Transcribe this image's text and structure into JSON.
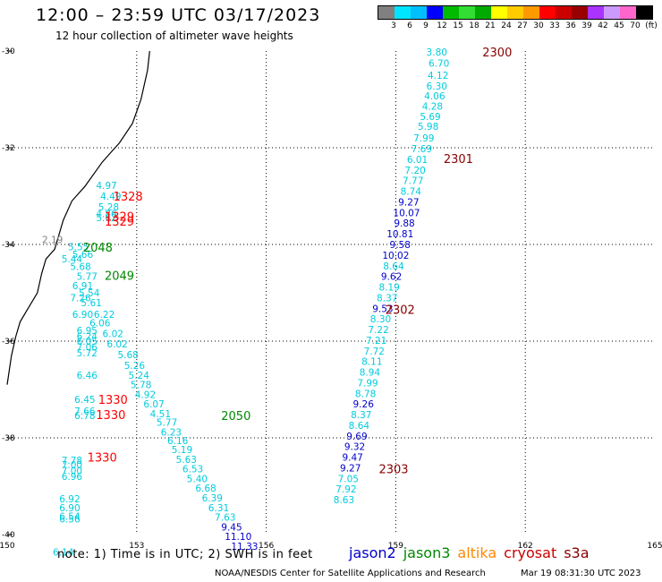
{
  "title": "12:00 – 23:59 UTC 03/17/2023",
  "subtitle": "12 hour collection of altimeter wave heights",
  "legend": {
    "labels": [
      "3",
      "6",
      "9",
      "12",
      "15",
      "18",
      "21",
      "24",
      "27",
      "30",
      "33",
      "36",
      "39",
      "42",
      "45",
      "70",
      "(ft)"
    ],
    "colors": [
      "#808080",
      "#00e5ff",
      "#00bfff",
      "#0000ff",
      "#00bb00",
      "#33dd33",
      "#00aa00",
      "#ffff00",
      "#ffcc00",
      "#ff9900",
      "#ff0000",
      "#cc0000",
      "#990000",
      "#aa33ff",
      "#cc99ff",
      "#ff66cc",
      "#000000"
    ]
  },
  "footnote": "note:  1) Time is in UTC;  2) SWH is in feet",
  "satellites": [
    {
      "name": "jason2",
      "color": "#0000cc"
    },
    {
      "name": "jason3",
      "color": "#008800"
    },
    {
      "name": "altika",
      "color": "#ff8800"
    },
    {
      "name": "cryosat",
      "color": "#cc0000"
    },
    {
      "name": "s3a",
      "color": "#880000"
    }
  ],
  "credit": "NOAA/NESDIS Center for Satellite Applications and Research",
  "credit_date": "Mar 19 08:31:30 UTC 2023",
  "map": {
    "lon_range": [
      150,
      165
    ],
    "lat_range": [
      -40,
      -30
    ],
    "lon_ticks": [
      150,
      153,
      156,
      159,
      162,
      165
    ],
    "lat_ticks": [
      -30,
      -32,
      -34,
      -36,
      -38,
      -40
    ],
    "lon_labels": [
      "150",
      "153",
      "156",
      "159",
      "162",
      "165"
    ],
    "lat_labels": [
      "-30",
      "-32",
      "-34",
      "-36",
      "-38",
      "-40"
    ],
    "coastline": [
      [
        153.3,
        -30
      ],
      [
        153.25,
        -30.4
      ],
      [
        153.1,
        -31
      ],
      [
        152.9,
        -31.5
      ],
      [
        152.6,
        -31.9
      ],
      [
        152.4,
        -32.1
      ],
      [
        152.2,
        -32.3
      ],
      [
        151.8,
        -32.8
      ],
      [
        151.5,
        -33.1
      ],
      [
        151.3,
        -33.5
      ],
      [
        151.2,
        -33.8
      ],
      [
        151.1,
        -34.1
      ],
      [
        150.9,
        -34.3
      ],
      [
        150.8,
        -34.6
      ],
      [
        150.7,
        -35.0
      ],
      [
        150.5,
        -35.3
      ],
      [
        150.3,
        -35.6
      ],
      [
        150.2,
        -35.9
      ],
      [
        150.1,
        -36.3
      ],
      [
        150.05,
        -36.6
      ],
      [
        150.0,
        -36.9
      ]
    ],
    "measurements": [
      {
        "lon": 159.95,
        "lat": -30.02,
        "v": "3.80",
        "c": "#00ccdd"
      },
      {
        "lon": 160.0,
        "lat": -30.25,
        "v": "6.70",
        "c": "#00ccdd"
      },
      {
        "lon": 159.98,
        "lat": -30.5,
        "v": "4.12",
        "c": "#00ccdd"
      },
      {
        "lon": 159.95,
        "lat": -30.72,
        "v": "6.30",
        "c": "#00ccdd"
      },
      {
        "lon": 159.9,
        "lat": -30.93,
        "v": "4.06",
        "c": "#00ccdd"
      },
      {
        "lon": 159.85,
        "lat": -31.14,
        "v": "4.28",
        "c": "#00ccdd"
      },
      {
        "lon": 159.8,
        "lat": -31.35,
        "v": "5.69",
        "c": "#00ccdd"
      },
      {
        "lon": 159.75,
        "lat": -31.56,
        "v": "5.98",
        "c": "#00ccdd"
      },
      {
        "lon": 159.65,
        "lat": -31.8,
        "v": "7.99",
        "c": "#00ccdd"
      },
      {
        "lon": 159.6,
        "lat": -32.02,
        "v": "7.69",
        "c": "#00ccdd"
      },
      {
        "lon": 159.5,
        "lat": -32.24,
        "v": "6.01",
        "c": "#00ccdd"
      },
      {
        "lon": 159.45,
        "lat": -32.46,
        "v": "7.20",
        "c": "#00ccdd"
      },
      {
        "lon": 159.4,
        "lat": -32.68,
        "v": "7.77",
        "c": "#00ccdd"
      },
      {
        "lon": 159.35,
        "lat": -32.9,
        "v": "8.74",
        "c": "#00ccdd"
      },
      {
        "lon": 159.3,
        "lat": -33.12,
        "v": "9.27",
        "c": "#0000cc"
      },
      {
        "lon": 159.25,
        "lat": -33.34,
        "v": "10.07",
        "c": "#0000cc"
      },
      {
        "lon": 159.2,
        "lat": -33.56,
        "v": "9.88",
        "c": "#0000cc"
      },
      {
        "lon": 159.1,
        "lat": -33.78,
        "v": "10.81",
        "c": "#0000cc"
      },
      {
        "lon": 159.1,
        "lat": -34.0,
        "v": "9.58",
        "c": "#0000cc"
      },
      {
        "lon": 159.0,
        "lat": -34.22,
        "v": "10.02",
        "c": "#0000cc"
      },
      {
        "lon": 158.95,
        "lat": -34.44,
        "v": "8.64",
        "c": "#00ccdd"
      },
      {
        "lon": 158.9,
        "lat": -34.66,
        "v": "9.62",
        "c": "#0000cc"
      },
      {
        "lon": 158.85,
        "lat": -34.88,
        "v": "8.19",
        "c": "#00ccdd"
      },
      {
        "lon": 158.8,
        "lat": -35.1,
        "v": "8.37",
        "c": "#00ccdd"
      },
      {
        "lon": 158.7,
        "lat": -35.32,
        "v": "9.53",
        "c": "#0000cc"
      },
      {
        "lon": 158.65,
        "lat": -35.54,
        "v": "8.30",
        "c": "#00ccdd"
      },
      {
        "lon": 158.6,
        "lat": -35.76,
        "v": "7.22",
        "c": "#00ccdd"
      },
      {
        "lon": 158.55,
        "lat": -35.98,
        "v": "7.21",
        "c": "#00ccdd"
      },
      {
        "lon": 158.5,
        "lat": -36.2,
        "v": "7.72",
        "c": "#00ccdd"
      },
      {
        "lon": 158.45,
        "lat": -36.42,
        "v": "8.11",
        "c": "#00ccdd"
      },
      {
        "lon": 158.4,
        "lat": -36.64,
        "v": "8.94",
        "c": "#00ccdd"
      },
      {
        "lon": 158.35,
        "lat": -36.86,
        "v": "7.99",
        "c": "#00ccdd"
      },
      {
        "lon": 158.3,
        "lat": -37.08,
        "v": "8.78",
        "c": "#00ccdd"
      },
      {
        "lon": 158.25,
        "lat": -37.3,
        "v": "9.26",
        "c": "#0000cc"
      },
      {
        "lon": 158.2,
        "lat": -37.52,
        "v": "8.37",
        "c": "#00ccdd"
      },
      {
        "lon": 158.15,
        "lat": -37.74,
        "v": "8.64",
        "c": "#00ccdd"
      },
      {
        "lon": 158.1,
        "lat": -37.96,
        "v": "9.69",
        "c": "#0000cc"
      },
      {
        "lon": 158.05,
        "lat": -38.18,
        "v": "9.32",
        "c": "#0000cc"
      },
      {
        "lon": 158.0,
        "lat": -38.4,
        "v": "9.47",
        "c": "#0000cc"
      },
      {
        "lon": 157.95,
        "lat": -38.62,
        "v": "9.27",
        "c": "#0000cc"
      },
      {
        "lon": 157.9,
        "lat": -38.84,
        "v": "7.05",
        "c": "#00ccdd"
      },
      {
        "lon": 157.85,
        "lat": -39.06,
        "v": "7.92",
        "c": "#00ccdd"
      },
      {
        "lon": 157.8,
        "lat": -39.28,
        "v": "8.63",
        "c": "#00ccdd"
      },
      {
        "lon": 152.3,
        "lat": -32.78,
        "v": "4.97",
        "c": "#00ccdd"
      },
      {
        "lon": 152.4,
        "lat": -33.0,
        "v": "4.49",
        "c": "#00ccdd"
      },
      {
        "lon": 152.35,
        "lat": -33.22,
        "v": "5.28",
        "c": "#00ccdd"
      },
      {
        "lon": 152.3,
        "lat": -33.36,
        "v": "4.86",
        "c": "#00ccdd"
      },
      {
        "lon": 152.3,
        "lat": -33.44,
        "v": "5.62",
        "c": "#00ccdd"
      },
      {
        "lon": 151.05,
        "lat": -33.9,
        "v": "2.19",
        "c": "#808080"
      },
      {
        "lon": 151.65,
        "lat": -34.05,
        "v": "5.55",
        "c": "#00ccdd"
      },
      {
        "lon": 151.75,
        "lat": -34.2,
        "v": "5.66",
        "c": "#00ccdd"
      },
      {
        "lon": 151.5,
        "lat": -34.3,
        "v": "5.44",
        "c": "#00ccdd"
      },
      {
        "lon": 151.7,
        "lat": -34.45,
        "v": "5.68",
        "c": "#00ccdd"
      },
      {
        "lon": 151.85,
        "lat": -34.66,
        "v": "5.77",
        "c": "#00ccdd"
      },
      {
        "lon": 151.75,
        "lat": -34.85,
        "v": "6.91",
        "c": "#00ccdd"
      },
      {
        "lon": 151.9,
        "lat": -35.0,
        "v": "5.54",
        "c": "#00ccdd"
      },
      {
        "lon": 151.7,
        "lat": -35.1,
        "v": "7.26",
        "c": "#00ccdd"
      },
      {
        "lon": 151.95,
        "lat": -35.2,
        "v": "5.61",
        "c": "#00ccdd"
      },
      {
        "lon": 151.75,
        "lat": -35.44,
        "v": "6.90",
        "c": "#00ccdd"
      },
      {
        "lon": 152.25,
        "lat": -35.44,
        "v": "6.22",
        "c": "#00ccdd"
      },
      {
        "lon": 152.15,
        "lat": -35.62,
        "v": "6.06",
        "c": "#00ccdd"
      },
      {
        "lon": 151.85,
        "lat": -35.78,
        "v": "6.95",
        "c": "#00ccdd"
      },
      {
        "lon": 152.45,
        "lat": -35.84,
        "v": "6.02",
        "c": "#00ccdd"
      },
      {
        "lon": 151.85,
        "lat": -35.9,
        "v": "6.24",
        "c": "#00ccdd"
      },
      {
        "lon": 151.85,
        "lat": -36.0,
        "v": "6.05",
        "c": "#00ccdd"
      },
      {
        "lon": 152.55,
        "lat": -36.06,
        "v": "6.02",
        "c": "#00ccdd"
      },
      {
        "lon": 151.85,
        "lat": -36.12,
        "v": "7.06",
        "c": "#00ccdd"
      },
      {
        "lon": 151.85,
        "lat": -36.24,
        "v": "5.72",
        "c": "#00ccdd"
      },
      {
        "lon": 152.8,
        "lat": -36.28,
        "v": "5.68",
        "c": "#00ccdd"
      },
      {
        "lon": 152.95,
        "lat": -36.5,
        "v": "5.26",
        "c": "#00ccdd"
      },
      {
        "lon": 153.05,
        "lat": -36.7,
        "v": "5.24",
        "c": "#00ccdd"
      },
      {
        "lon": 151.85,
        "lat": -36.7,
        "v": "6.46",
        "c": "#00ccdd"
      },
      {
        "lon": 153.1,
        "lat": -36.9,
        "v": "5.78",
        "c": "#00ccdd"
      },
      {
        "lon": 153.2,
        "lat": -37.1,
        "v": "4.92",
        "c": "#00ccdd"
      },
      {
        "lon": 153.4,
        "lat": -37.3,
        "v": "6.07",
        "c": "#00ccdd"
      },
      {
        "lon": 151.8,
        "lat": -37.2,
        "v": "6.45",
        "c": "#00ccdd"
      },
      {
        "lon": 153.55,
        "lat": -37.5,
        "v": "4.51",
        "c": "#00ccdd"
      },
      {
        "lon": 151.8,
        "lat": -37.44,
        "v": "7.66",
        "c": "#00ccdd"
      },
      {
        "lon": 151.8,
        "lat": -37.54,
        "v": "6.78",
        "c": "#00ccdd"
      },
      {
        "lon": 153.7,
        "lat": -37.68,
        "v": "5.77",
        "c": "#00ccdd"
      },
      {
        "lon": 153.8,
        "lat": -37.88,
        "v": "6.23",
        "c": "#00ccdd"
      },
      {
        "lon": 153.95,
        "lat": -38.06,
        "v": "6.16",
        "c": "#00ccdd"
      },
      {
        "lon": 154.05,
        "lat": -38.24,
        "v": "5.19",
        "c": "#00ccdd"
      },
      {
        "lon": 154.15,
        "lat": -38.44,
        "v": "5.63",
        "c": "#00ccdd"
      },
      {
        "lon": 151.5,
        "lat": -38.46,
        "v": "7.78",
        "c": "#00ccdd"
      },
      {
        "lon": 151.5,
        "lat": -38.56,
        "v": "7.00",
        "c": "#00ccdd"
      },
      {
        "lon": 154.3,
        "lat": -38.64,
        "v": "6.53",
        "c": "#00ccdd"
      },
      {
        "lon": 151.5,
        "lat": -38.68,
        "v": "7.00",
        "c": "#00ccdd"
      },
      {
        "lon": 151.5,
        "lat": -38.8,
        "v": "6.96",
        "c": "#00ccdd"
      },
      {
        "lon": 154.4,
        "lat": -38.84,
        "v": "5.40",
        "c": "#00ccdd"
      },
      {
        "lon": 154.6,
        "lat": -39.04,
        "v": "6.68",
        "c": "#00ccdd"
      },
      {
        "lon": 154.75,
        "lat": -39.24,
        "v": "6.39",
        "c": "#00ccdd"
      },
      {
        "lon": 151.45,
        "lat": -39.26,
        "v": "6.92",
        "c": "#00ccdd"
      },
      {
        "lon": 154.9,
        "lat": -39.44,
        "v": "6.31",
        "c": "#00ccdd"
      },
      {
        "lon": 151.45,
        "lat": -39.44,
        "v": "6.90",
        "c": "#00ccdd"
      },
      {
        "lon": 155.05,
        "lat": -39.64,
        "v": "7.63",
        "c": "#00ccdd"
      },
      {
        "lon": 151.45,
        "lat": -39.62,
        "v": "6.54",
        "c": "#00ccdd"
      },
      {
        "lon": 151.45,
        "lat": -39.68,
        "v": "6.56",
        "c": "#00ccdd"
      },
      {
        "lon": 155.2,
        "lat": -39.84,
        "v": "9.45",
        "c": "#0000cc"
      },
      {
        "lon": 155.35,
        "lat": -40.04,
        "v": "11.10",
        "c": "#0000cc"
      },
      {
        "lon": 155.5,
        "lat": -40.24,
        "v": "11.33",
        "c": "#0000cc"
      },
      {
        "lon": 151.3,
        "lat": -40.36,
        "v": "6.14",
        "c": "#00ccdd"
      }
    ],
    "times": [
      {
        "lon": 161.35,
        "lat": -30.02,
        "t": "2300",
        "c": "#880000"
      },
      {
        "lon": 160.45,
        "lat": -32.22,
        "t": "2301",
        "c": "#880000"
      },
      {
        "lon": 159.1,
        "lat": -35.34,
        "t": "2302",
        "c": "#880000"
      },
      {
        "lon": 158.95,
        "lat": -38.64,
        "t": "2303",
        "c": "#880000"
      },
      {
        "lon": 152.8,
        "lat": -33.0,
        "t": "1328",
        "c": "#ff0000"
      },
      {
        "lon": 152.6,
        "lat": -33.42,
        "t": "1329",
        "c": "#ff0000"
      },
      {
        "lon": 152.6,
        "lat": -33.52,
        "t": "1329",
        "c": "#ff0000"
      },
      {
        "lon": 152.1,
        "lat": -34.06,
        "t": "2048",
        "c": "#008800"
      },
      {
        "lon": 152.6,
        "lat": -34.64,
        "t": "2049",
        "c": "#008800"
      },
      {
        "lon": 152.45,
        "lat": -37.2,
        "t": "1330",
        "c": "#ff0000"
      },
      {
        "lon": 152.4,
        "lat": -37.52,
        "t": "1330",
        "c": "#ff0000"
      },
      {
        "lon": 155.3,
        "lat": -37.54,
        "t": "2050",
        "c": "#008800"
      },
      {
        "lon": 152.2,
        "lat": -38.4,
        "t": "1330",
        "c": "#ff0000"
      }
    ]
  }
}
